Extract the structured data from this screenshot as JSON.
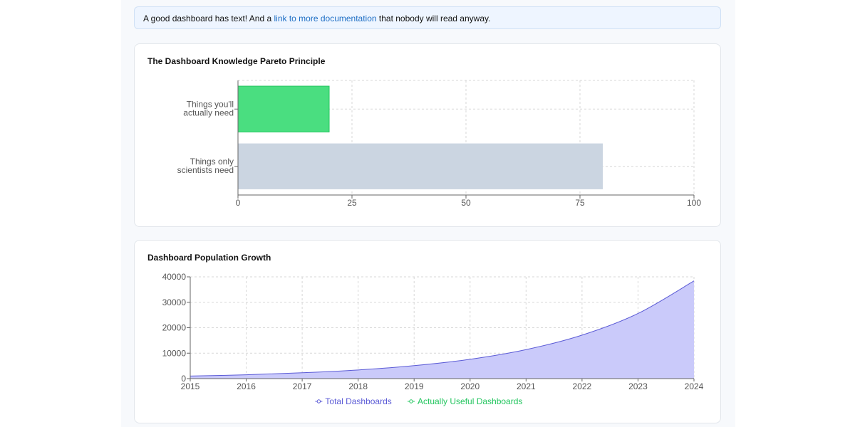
{
  "notice": {
    "prefix": "A good dashboard has text! And a ",
    "link_text": "link to more documentation",
    "suffix": " that nobody will read anyway."
  },
  "charts": {
    "pareto": {
      "title": "The Dashboard Knowledge Pareto Principle"
    },
    "growth": {
      "title": "Dashboard Population Growth"
    }
  },
  "chart_data": [
    {
      "type": "bar",
      "orientation": "horizontal",
      "title": "The Dashboard Knowledge Pareto Principle",
      "categories": [
        "Things you'll actually need",
        "Things only scientists need"
      ],
      "category_lines": [
        [
          "Things you'll",
          "actually need"
        ],
        [
          "Things only",
          "scientists need"
        ]
      ],
      "values": [
        20,
        80
      ],
      "colors": [
        "#4ade80",
        "#cbd5e1"
      ],
      "xlim": [
        0,
        100
      ],
      "xticks": [
        0,
        25,
        50,
        75,
        100
      ],
      "grid": true,
      "legend": "none"
    },
    {
      "type": "area",
      "title": "Dashboard Population Growth",
      "x": [
        2015,
        2016,
        2017,
        2018,
        2019,
        2020,
        2021,
        2022,
        2023,
        2024
      ],
      "series": [
        {
          "name": "Total Dashboards",
          "values": [
            1000,
            1500,
            2300,
            3400,
            5100,
            7600,
            11400,
            17100,
            25600,
            38400
          ],
          "color": "#5b5bd6",
          "fill": "#cacafa"
        },
        {
          "name": "Actually Useful Dashboards",
          "values": [
            10,
            10,
            10,
            10,
            10,
            10,
            10,
            10,
            10,
            10
          ],
          "color": "#22c55e"
        }
      ],
      "ylim": [
        0,
        40000
      ],
      "yticks": [
        0,
        10000,
        20000,
        30000,
        40000
      ],
      "grid": true,
      "legend": "bottom-center"
    }
  ]
}
